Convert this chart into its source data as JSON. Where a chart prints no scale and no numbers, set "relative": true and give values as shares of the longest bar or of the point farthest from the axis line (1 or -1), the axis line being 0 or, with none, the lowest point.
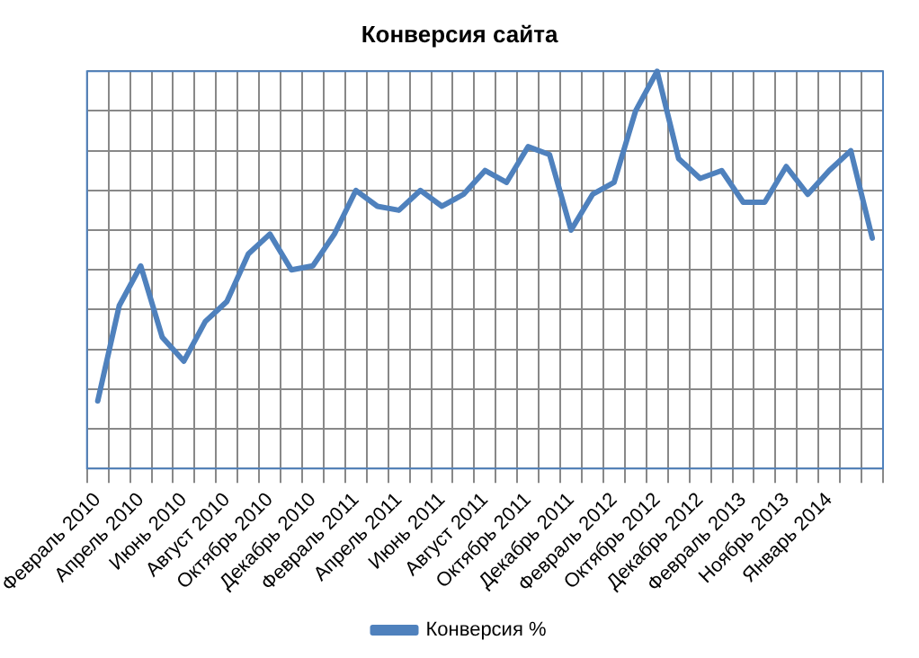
{
  "chart_data": {
    "type": "line",
    "title": "Конверсия сайта",
    "relative": true,
    "grid": true,
    "legend": "bottom",
    "marker": "none",
    "categories": [
      "Февраль 2010",
      null,
      "Апрель 2010",
      null,
      "Июнь 2010",
      null,
      "Август 2010",
      null,
      "Октябрь 2010",
      null,
      "Декабрь 2010",
      null,
      "Февраль 2011",
      null,
      "Апрель 2011",
      null,
      "Июнь 2011",
      null,
      "Август 2011",
      null,
      "Октябрь 2011",
      null,
      "Декабрь 2011",
      null,
      "Февраль 2012",
      null,
      "Октябрь 2012",
      null,
      "Декабрь 2012",
      null,
      "Февраль 2013",
      null,
      "Ноябрь 2013",
      null,
      "Январь 2014",
      null,
      null
    ],
    "series": [
      {
        "name": "Конверсия %",
        "color": "#4f81bd",
        "values": [
          0.17,
          0.41,
          0.51,
          0.33,
          0.27,
          0.37,
          0.42,
          0.54,
          0.59,
          0.5,
          0.51,
          0.59,
          0.7,
          0.66,
          0.65,
          0.7,
          0.66,
          0.69,
          0.75,
          0.72,
          0.81,
          0.79,
          0.6,
          0.69,
          0.72,
          0.9,
          1,
          0.78,
          0.73,
          0.75,
          0.67,
          0.67,
          0.76,
          0.69,
          0.75,
          0.8,
          0.58
        ]
      }
    ]
  }
}
